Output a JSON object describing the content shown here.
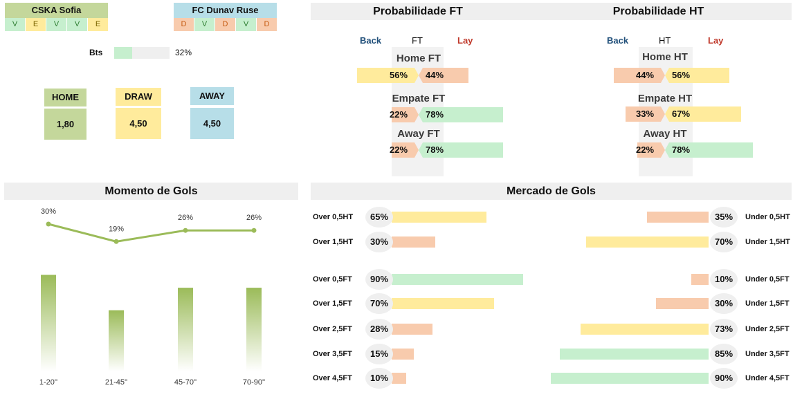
{
  "home_team": {
    "name": "CSKA Sofia",
    "form": [
      "V",
      "E",
      "V",
      "V",
      "E"
    ],
    "color": "#c4d79b"
  },
  "away_team": {
    "name": "FC Dunav Ruse",
    "form": [
      "D",
      "V",
      "D",
      "V",
      "D"
    ],
    "color": "#b7dee8"
  },
  "bts": {
    "label": "Bts",
    "value": "32%",
    "fraction": 0.32
  },
  "odds": [
    {
      "label": "HOME",
      "value": "1,80",
      "color": "#c4d79b"
    },
    {
      "label": "DRAW",
      "value": "4,50",
      "color": "#ffeb9c"
    },
    {
      "label": "AWAY",
      "value": "4,50",
      "color": "#b7dee8"
    }
  ],
  "prob_ft": {
    "title": "Probabilidade FT",
    "back": "Back",
    "mid": "FT",
    "lay": "Lay",
    "rows": [
      {
        "name": "Home FT",
        "back": "56%",
        "lay": "44%",
        "back_val": 56,
        "lay_val": 44
      },
      {
        "name": "Empate FT",
        "back": "22%",
        "lay": "78%",
        "back_val": 22,
        "lay_val": 78
      },
      {
        "name": "Away FT",
        "back": "22%",
        "lay": "78%",
        "back_val": 22,
        "lay_val": 78
      }
    ]
  },
  "prob_ht": {
    "title": "Probabilidade HT",
    "back": "Back",
    "mid": "HT",
    "lay": "Lay",
    "rows": [
      {
        "name": "Home HT",
        "back": "44%",
        "lay": "56%",
        "back_val": 44,
        "lay_val": 56
      },
      {
        "name": "Empate HT",
        "back": "33%",
        "lay": "67%",
        "back_val": 33,
        "lay_val": 67
      },
      {
        "name": "Away HT",
        "back": "22%",
        "lay": "78%",
        "back_val": 22,
        "lay_val": 78
      }
    ]
  },
  "momento": {
    "title": "Momento de Gols"
  },
  "chart_data": {
    "type": "bar",
    "categories": [
      "1-20''",
      "21-45''",
      "45-70''",
      "70-90''"
    ],
    "values": [
      30,
      19,
      26,
      26
    ],
    "labels": [
      "30%",
      "19%",
      "26%",
      "26%"
    ],
    "bar_color": "#9bbb59",
    "line_color": "#9bbb59"
  },
  "mercado": {
    "title": "Mercado de Gols",
    "rows": [
      {
        "over_label": "Over 0,5HT",
        "over": "65%",
        "over_val": 65,
        "under_label": "Under 0,5HT",
        "under": "35%",
        "under_val": 35
      },
      {
        "over_label": "Over 1,5HT",
        "over": "30%",
        "over_val": 30,
        "under_label": "Under 1,5HT",
        "under": "70%",
        "under_val": 70
      },
      {
        "over_label": "Over 0,5FT",
        "over": "90%",
        "over_val": 90,
        "under_label": "Under 0,5FT",
        "under": "10%",
        "under_val": 10
      },
      {
        "over_label": "Over 1,5FT",
        "over": "70%",
        "over_val": 70,
        "under_label": "Under 1,5FT",
        "under": "30%",
        "under_val": 30
      },
      {
        "over_label": "Over 2,5FT",
        "over": "28%",
        "over_val": 28,
        "under_label": "Under 2,5FT",
        "under": "73%",
        "under_val": 73
      },
      {
        "over_label": "Over 3,5FT",
        "over": "15%",
        "over_val": 15,
        "under_label": "Under 3,5FT",
        "under": "85%",
        "under_val": 85
      },
      {
        "over_label": "Over 4,5FT",
        "over": "10%",
        "over_val": 10,
        "under_label": "Under 4,5FT",
        "under": "90%",
        "under_val": 90
      }
    ]
  },
  "colors": {
    "green": "#c6efce",
    "yellow": "#ffeb9c",
    "orange": "#f8cbad",
    "back_text": "#1f4e79",
    "lay_text": "#c0392b"
  }
}
